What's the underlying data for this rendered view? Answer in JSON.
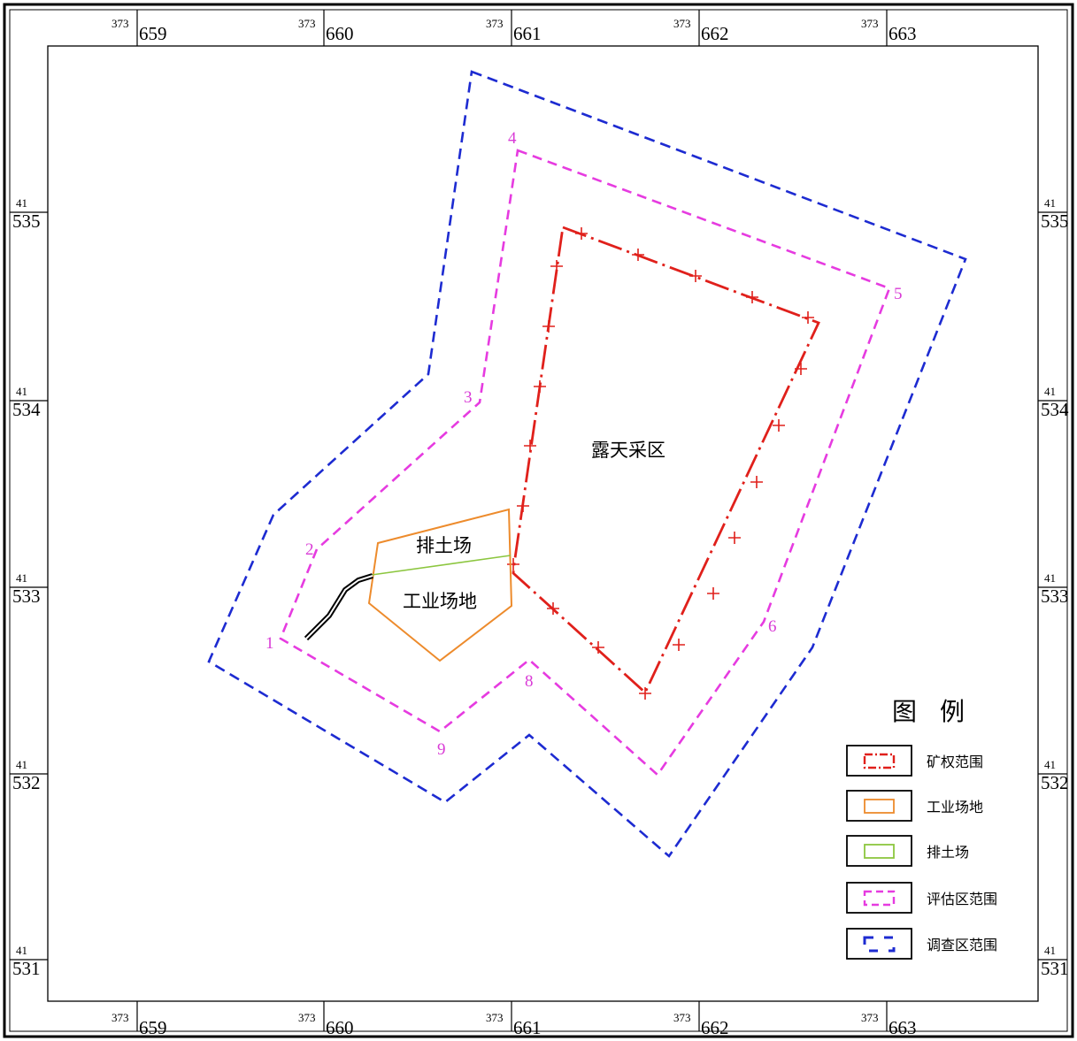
{
  "grid": {
    "x_prefix": "373",
    "x_values": [
      "659",
      "660",
      "661",
      "662",
      "663"
    ],
    "y_prefix": "41",
    "y_values": [
      "535",
      "534",
      "533",
      "532",
      "531"
    ]
  },
  "areas": {
    "open_pit": "露天采区",
    "waste_dump": "排土场",
    "industrial_site": "工业场地"
  },
  "points": [
    "1",
    "2",
    "3",
    "4",
    "5",
    "6",
    "8",
    "9"
  ],
  "legend": {
    "title": "图例",
    "items": [
      {
        "label": "矿权范围",
        "color": "#e0201b"
      },
      {
        "label": "工业场地",
        "color": "#ed8b2c"
      },
      {
        "label": "排土场",
        "color": "#8cc63f"
      },
      {
        "label": "评估区范围",
        "color": "#e63be0"
      },
      {
        "label": "调查区范围",
        "color": "#1d2bd1"
      }
    ]
  },
  "colors": {
    "mining_right": "#e0201b",
    "industrial_site": "#ed8b2c",
    "waste_dump": "#8cc63f",
    "assessment": "#e63be0",
    "survey": "#1d2bd1"
  }
}
